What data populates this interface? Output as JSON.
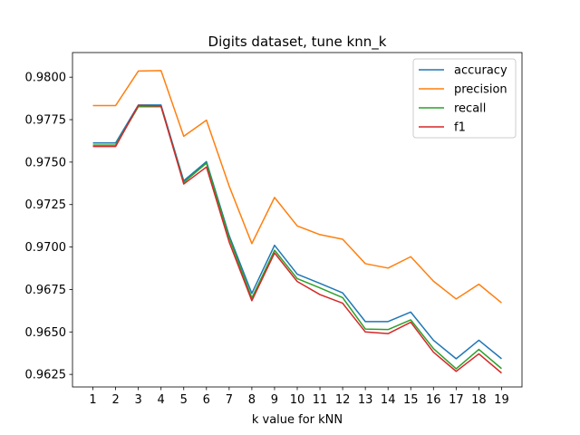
{
  "chart_data": {
    "type": "line",
    "title": "Digits dataset, tune knn_k",
    "xlabel": "k value for kNN",
    "ylabel": "",
    "x": [
      1,
      2,
      3,
      4,
      5,
      6,
      7,
      8,
      9,
      10,
      11,
      12,
      13,
      14,
      15,
      16,
      17,
      18,
      19
    ],
    "x_tick_labels": [
      "1",
      "2",
      "3",
      "4",
      "5",
      "6",
      "7",
      "8",
      "9",
      "10",
      "11",
      "12",
      "13",
      "14",
      "15",
      "16",
      "17",
      "18",
      "19"
    ],
    "xlim": [
      0.1,
      19.9
    ],
    "ylim": [
      0.96176,
      0.98145
    ],
    "y_ticks": [
      0.9625,
      0.965,
      0.9675,
      0.97,
      0.9725,
      0.975,
      0.9775,
      0.98
    ],
    "y_tick_labels": [
      "0.9625",
      "0.9650",
      "0.9675",
      "0.9700",
      "0.9725",
      "0.9750",
      "0.9775",
      "0.9800"
    ],
    "grid": false,
    "legend_position": "top-right",
    "series": [
      {
        "name": "accuracy",
        "color": "#1f77b4",
        "values": [
          0.97613,
          0.97613,
          0.97836,
          0.97836,
          0.9739,
          0.97503,
          0.97068,
          0.96727,
          0.9701,
          0.9684,
          0.96786,
          0.9673,
          0.96561,
          0.96561,
          0.96617,
          0.96451,
          0.96342,
          0.96451,
          0.96342
        ]
      },
      {
        "name": "precision",
        "color": "#ff7f0e",
        "values": [
          0.97833,
          0.97833,
          0.98036,
          0.98039,
          0.97652,
          0.97747,
          0.97359,
          0.9702,
          0.97292,
          0.97124,
          0.97073,
          0.97046,
          0.96902,
          0.96876,
          0.96943,
          0.96799,
          0.96694,
          0.96781,
          0.96671
        ]
      },
      {
        "name": "recall",
        "color": "#2ca02c",
        "values": [
          0.976,
          0.976,
          0.97826,
          0.97826,
          0.9738,
          0.97494,
          0.97055,
          0.967,
          0.96981,
          0.96814,
          0.96759,
          0.96702,
          0.96517,
          0.96514,
          0.96571,
          0.96402,
          0.96283,
          0.96397,
          0.96284
        ]
      },
      {
        "name": "f1",
        "color": "#d62728",
        "values": [
          0.97592,
          0.97592,
          0.97834,
          0.9783,
          0.97371,
          0.97471,
          0.9703,
          0.96684,
          0.96965,
          0.96797,
          0.9672,
          0.96669,
          0.965,
          0.9649,
          0.96557,
          0.96381,
          0.96268,
          0.96371,
          0.96258
        ]
      }
    ]
  }
}
